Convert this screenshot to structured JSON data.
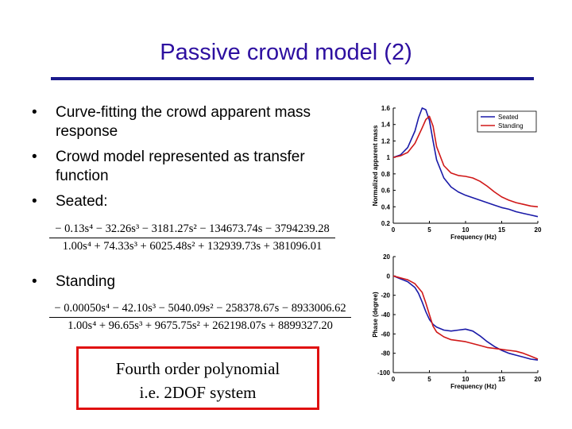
{
  "slide": {
    "title": "Passive crowd model (2)",
    "bullets": [
      "Curve-fitting the crowd apparent mass response",
      "Crowd model represented as transfer function",
      "Seated:"
    ],
    "standing_bullet": "Standing",
    "bullet_glyph": "•",
    "seated_eq": {
      "numerator": "− 0.13s⁴ − 32.26s³ − 3181.27s² − 134673.74s − 3794239.28",
      "denominator": "1.00s⁴ + 74.33s³ + 6025.48s² + 132939.73s + 381096.01"
    },
    "standing_eq": {
      "numerator": "− 0.00050s⁴ − 42.10s³ − 5040.09s² − 258378.67s − 8933006.62",
      "denominator": "1.00s⁴ + 96.65s³ + 9675.75s² + 262198.07s + 8899327.20"
    },
    "box_lines": [
      "Fourth order polynomial",
      "i.e. 2DOF system"
    ],
    "colors": {
      "title": "#2d0fa0",
      "rule": "#1a1a8c",
      "box_border": "#e01010",
      "seated": "#1a1aa8",
      "standing": "#d01818"
    }
  },
  "chart_data": [
    {
      "type": "line",
      "xlabel": "Frequency (Hz)",
      "ylabel": "Normalized apparent mass",
      "xlim": [
        0,
        20
      ],
      "ylim": [
        0.2,
        1.6
      ],
      "xticks": [
        0,
        5,
        10,
        15,
        20
      ],
      "yticks": [
        0.2,
        0.4,
        0.6,
        0.8,
        1,
        1.2,
        1.4,
        1.6
      ],
      "legend_position": "top-right",
      "grid": false,
      "series": [
        {
          "name": "Seated",
          "color": "#1a1aa8",
          "x": [
            0,
            1,
            2,
            3,
            3.5,
            4,
            4.5,
            5,
            5.5,
            6,
            7,
            8,
            9,
            10,
            11,
            12,
            13,
            14,
            15,
            16,
            17,
            18,
            19,
            20
          ],
          "y": [
            1.0,
            1.03,
            1.12,
            1.32,
            1.48,
            1.6,
            1.58,
            1.45,
            1.2,
            0.97,
            0.75,
            0.64,
            0.58,
            0.54,
            0.51,
            0.48,
            0.45,
            0.42,
            0.39,
            0.37,
            0.34,
            0.32,
            0.3,
            0.28
          ]
        },
        {
          "name": "Standing",
          "color": "#d01818",
          "x": [
            0,
            1,
            2,
            3,
            4,
            4.5,
            5,
            5.5,
            6,
            7,
            8,
            9,
            10,
            11,
            12,
            13,
            14,
            15,
            16,
            17,
            18,
            19,
            20
          ],
          "y": [
            1.0,
            1.02,
            1.06,
            1.17,
            1.36,
            1.46,
            1.5,
            1.38,
            1.13,
            0.9,
            0.81,
            0.78,
            0.77,
            0.75,
            0.71,
            0.65,
            0.58,
            0.52,
            0.48,
            0.45,
            0.43,
            0.41,
            0.4
          ]
        }
      ]
    },
    {
      "type": "line",
      "xlabel": "Frequency (Hz)",
      "ylabel": "Phase (degree)",
      "xlim": [
        0,
        20
      ],
      "ylim": [
        -100,
        20
      ],
      "xticks": [
        0,
        5,
        10,
        15,
        20
      ],
      "yticks": [
        -100,
        -80,
        -60,
        -40,
        -20,
        0,
        20
      ],
      "grid": false,
      "series": [
        {
          "name": "Seated",
          "color": "#1a1aa8",
          "x": [
            0,
            1,
            2,
            3,
            3.5,
            4,
            4.5,
            5,
            5.5,
            6,
            7,
            8,
            9,
            10,
            11,
            12,
            13,
            14,
            15,
            16,
            17,
            18,
            19,
            20
          ],
          "y": [
            0,
            -3,
            -6,
            -12,
            -18,
            -27,
            -37,
            -45,
            -50,
            -53,
            -56,
            -57,
            -56,
            -55,
            -57,
            -62,
            -68,
            -73,
            -77,
            -80,
            -82,
            -84,
            -86,
            -87
          ]
        },
        {
          "name": "Standing",
          "color": "#d01818",
          "x": [
            0,
            1,
            2,
            3,
            4,
            4.5,
            5,
            5.5,
            6,
            7,
            8,
            9,
            10,
            11,
            12,
            13,
            14,
            15,
            16,
            17,
            18,
            19,
            20
          ],
          "y": [
            0,
            -2,
            -4,
            -8,
            -17,
            -28,
            -40,
            -52,
            -58,
            -63,
            -66,
            -67,
            -68,
            -70,
            -72,
            -74,
            -75,
            -76,
            -77,
            -78,
            -80,
            -83,
            -86
          ]
        }
      ]
    }
  ]
}
